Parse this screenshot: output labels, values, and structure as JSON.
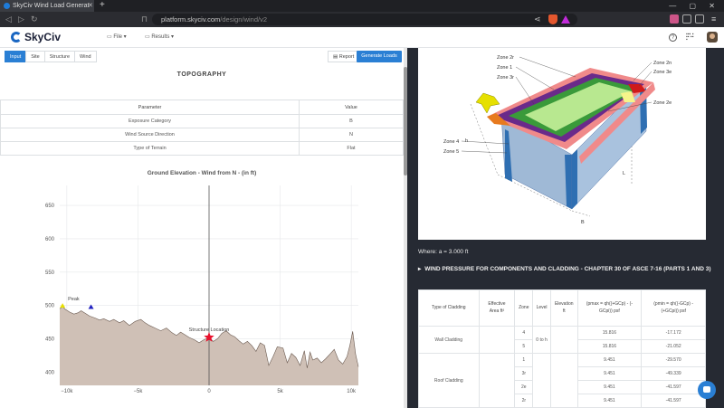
{
  "browser": {
    "tab_title": "SkyCiv Wind Load Generat",
    "tab_close": "✕",
    "new_tab": "+",
    "url_host": "platform.skyciv.com",
    "url_path": "/design/wind/v2",
    "window_controls": "— ▢ ✕"
  },
  "header": {
    "logo_text": "SkyCiv",
    "menu_file": "File",
    "menu_results": "Results",
    "help_icon": "?",
    "apps_icon": "⋮⋮⋮"
  },
  "toolbar": {
    "tabs": [
      "Input",
      "Site",
      "Structure",
      "Wind"
    ],
    "report_label": "Report",
    "generate_label": "Generate Loads"
  },
  "topography": {
    "title": "TOPOGRAPHY",
    "headers": [
      "Parameter",
      "Value"
    ],
    "rows": [
      [
        "Exposure Category",
        "B"
      ],
      [
        "Wind Source Direction",
        "N"
      ],
      [
        "Type of Terrain",
        "Flat"
      ]
    ]
  },
  "chart_data": {
    "type": "area",
    "title": "Ground Elevation - Wind from N - (in ft)",
    "xlim": [
      -10500,
      10500
    ],
    "ylim": [
      380,
      680
    ],
    "x_ticks": [
      -10000,
      -5000,
      0,
      5000,
      10000
    ],
    "x_tick_labels": [
      "−10k",
      "−5k",
      "0",
      "5k",
      "10k"
    ],
    "y_ticks": [
      400,
      450,
      500,
      550,
      600,
      650
    ],
    "y_tick_labels": [
      "400",
      "450",
      "500",
      "550",
      "600",
      "650"
    ],
    "grid": true,
    "fill_color": "#cfc0b6",
    "line_color": "#6b5a50",
    "x": [
      -10500,
      -10300,
      -10100,
      -9800,
      -9500,
      -9200,
      -9000,
      -8700,
      -8400,
      -8000,
      -7700,
      -7400,
      -7000,
      -6700,
      -6300,
      -6000,
      -5600,
      -5200,
      -4800,
      -4500,
      -4200,
      -3800,
      -3400,
      -3000,
      -2600,
      -2300,
      -2000,
      -1700,
      -1400,
      -1000,
      -700,
      -400,
      -200,
      0,
      300,
      600,
      900,
      1200,
      1500,
      1800,
      2100,
      2400,
      2700,
      3000,
      3300,
      3600,
      3900,
      4200,
      4500,
      4800,
      5200,
      5500,
      5800,
      6100,
      6400,
      6700,
      6900,
      7100,
      7300,
      7600,
      7900,
      8200,
      8500,
      8800,
      9100,
      9400,
      9700,
      9900,
      10100,
      10300,
      10500
    ],
    "y": [
      495,
      498,
      494,
      490,
      487,
      489,
      492,
      488,
      484,
      481,
      478,
      480,
      476,
      479,
      474,
      477,
      470,
      476,
      479,
      474,
      470,
      466,
      462,
      466,
      459,
      455,
      460,
      456,
      452,
      448,
      444,
      448,
      450,
      452,
      446,
      450,
      458,
      462,
      456,
      453,
      447,
      442,
      446,
      440,
      431,
      444,
      440,
      410,
      423,
      438,
      436,
      414,
      428,
      422,
      410,
      432,
      406,
      430,
      418,
      421,
      414,
      420,
      427,
      434,
      418,
      412,
      423,
      440,
      461,
      427,
      408
    ],
    "annotations": [
      {
        "label": "Peak",
        "x": -10300,
        "y": 498,
        "marker": "triangle",
        "color": "#e8e000"
      },
      {
        "label": "",
        "x": -8300,
        "y": 496,
        "marker": "triangle",
        "color": "#2020c0"
      },
      {
        "label": "Structure Location",
        "x": 0,
        "y": 452,
        "marker": "star",
        "color": "#e8112d"
      }
    ],
    "vertical_line_x": 0
  },
  "diagram": {
    "zone_labels": [
      "Zone 2r",
      "Zone 1",
      "Zone 3r",
      "Zone 2n",
      "Zone 3e",
      "Zone 2e",
      "Zone 4",
      "Zone 5"
    ],
    "dim_labels": [
      "h",
      "L",
      "B"
    ]
  },
  "where_text": "Where: a = 3.000 ft",
  "wind_pressure": {
    "title": "WIND PRESSURE FOR COMPONENTS AND CLADDING - CHAPTER 30 OF ASCE 7-16 (PARTS 1 AND 3)",
    "headers": [
      "Type of Cladding",
      "Effective Area ft²",
      "Zone",
      "Level",
      "Elevation ft",
      "(pmax = qh((+GCp) - (-GCpi)) psf",
      "(pmin = qh((-GCp) - (+GCpi)) psf"
    ],
    "groups": [
      {
        "type": "Wall Cladding",
        "level": "0 to h",
        "rows": [
          {
            "zone": "4",
            "pmax": "15.816",
            "pmin": "-17.172"
          },
          {
            "zone": "5",
            "pmax": "15.816",
            "pmin": "-21.052"
          }
        ]
      },
      {
        "type": "Roof Cladding",
        "level": "",
        "rows": [
          {
            "zone": "1",
            "pmax": "9.451",
            "pmin": "-29.570"
          },
          {
            "zone": "3r",
            "pmax": "9.451",
            "pmin": "-49.339"
          },
          {
            "zone": "2e",
            "pmax": "9.451",
            "pmin": "-41.597"
          },
          {
            "zone": "2r",
            "pmax": "9.451",
            "pmin": "-41.597"
          }
        ]
      }
    ]
  }
}
